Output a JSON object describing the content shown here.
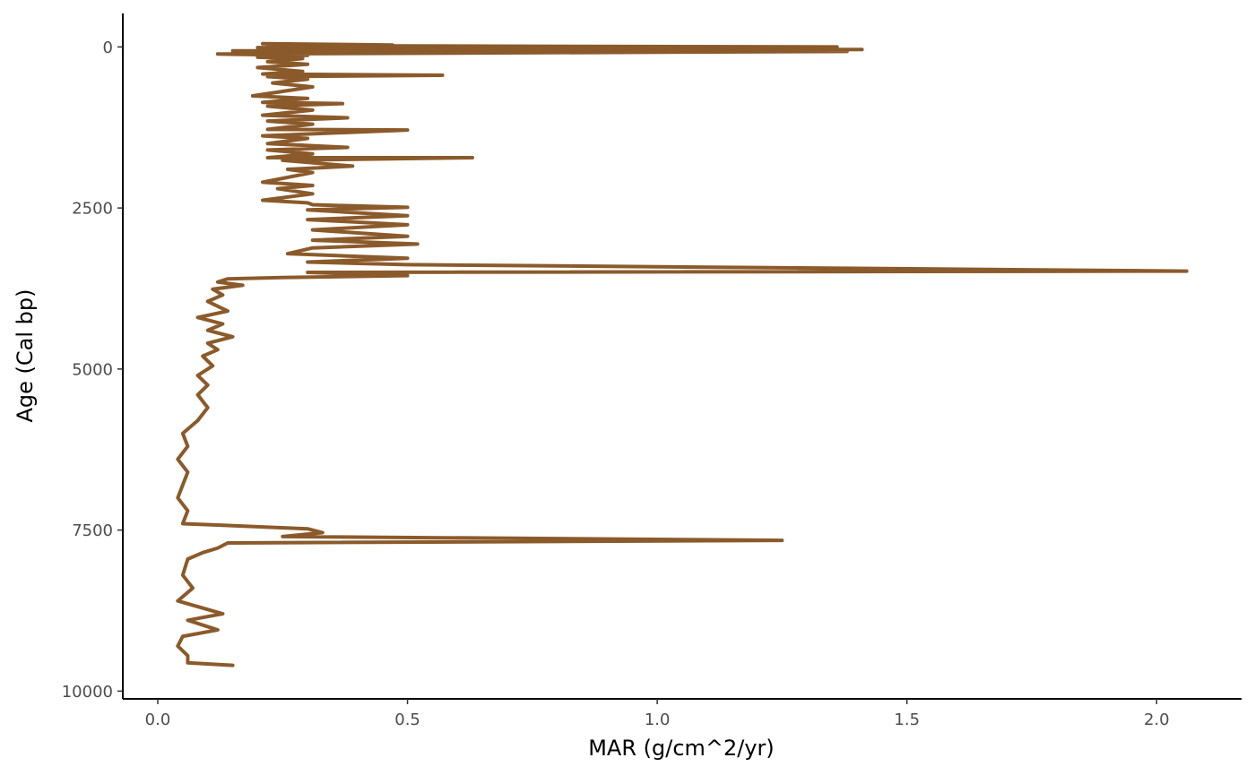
{
  "chart_data": {
    "type": "line",
    "title": "",
    "xlabel": "MAR (g/cm^2/yr)",
    "ylabel": "Age (Cal bp)",
    "xlim": [
      -0.07,
      2.17
    ],
    "ylim": [
      -520,
      10120
    ],
    "y_reversed": true,
    "grid": false,
    "legend": "none",
    "x_ticks": [
      {
        "value": 0.0,
        "label": "0.0"
      },
      {
        "value": 0.5,
        "label": "0.5"
      },
      {
        "value": 1.0,
        "label": "1.0"
      },
      {
        "value": 1.5,
        "label": "1.5"
      },
      {
        "value": 2.0,
        "label": "2.0"
      }
    ],
    "y_ticks": [
      {
        "value": 0,
        "label": "0"
      },
      {
        "value": 2500,
        "label": "2500"
      },
      {
        "value": 5000,
        "label": "5000"
      },
      {
        "value": 7500,
        "label": "7500"
      },
      {
        "value": 10000,
        "label": "10000"
      }
    ],
    "line_color": "#8B5A2B",
    "series": [
      {
        "points": [
          {
            "x": 0.21,
            "y": -50
          },
          {
            "x": 0.47,
            "y": -30
          },
          {
            "x": 0.22,
            "y": -20
          },
          {
            "x": 1.36,
            "y": 0
          },
          {
            "x": 0.2,
            "y": 10
          },
          {
            "x": 1.41,
            "y": 40
          },
          {
            "x": 0.15,
            "y": 60
          },
          {
            "x": 1.38,
            "y": 70
          },
          {
            "x": 0.12,
            "y": 110
          },
          {
            "x": 0.3,
            "y": 130
          },
          {
            "x": 0.2,
            "y": 160
          },
          {
            "x": 0.29,
            "y": 180
          },
          {
            "x": 0.22,
            "y": 230
          },
          {
            "x": 0.3,
            "y": 270
          },
          {
            "x": 0.2,
            "y": 320
          },
          {
            "x": 0.29,
            "y": 380
          },
          {
            "x": 0.21,
            "y": 420
          },
          {
            "x": 0.57,
            "y": 440
          },
          {
            "x": 0.22,
            "y": 460
          },
          {
            "x": 0.3,
            "y": 500
          },
          {
            "x": 0.23,
            "y": 560
          },
          {
            "x": 0.31,
            "y": 620
          },
          {
            "x": 0.19,
            "y": 760
          },
          {
            "x": 0.3,
            "y": 800
          },
          {
            "x": 0.21,
            "y": 860
          },
          {
            "x": 0.37,
            "y": 880
          },
          {
            "x": 0.22,
            "y": 920
          },
          {
            "x": 0.31,
            "y": 980
          },
          {
            "x": 0.21,
            "y": 1060
          },
          {
            "x": 0.38,
            "y": 1100
          },
          {
            "x": 0.22,
            "y": 1150
          },
          {
            "x": 0.31,
            "y": 1200
          },
          {
            "x": 0.22,
            "y": 1280
          },
          {
            "x": 0.5,
            "y": 1290
          },
          {
            "x": 0.21,
            "y": 1380
          },
          {
            "x": 0.3,
            "y": 1420
          },
          {
            "x": 0.22,
            "y": 1500
          },
          {
            "x": 0.38,
            "y": 1560
          },
          {
            "x": 0.22,
            "y": 1600
          },
          {
            "x": 0.31,
            "y": 1660
          },
          {
            "x": 0.22,
            "y": 1720
          },
          {
            "x": 0.63,
            "y": 1720
          },
          {
            "x": 0.25,
            "y": 1760
          },
          {
            "x": 0.39,
            "y": 1850
          },
          {
            "x": 0.26,
            "y": 1900
          },
          {
            "x": 0.31,
            "y": 1950
          },
          {
            "x": 0.21,
            "y": 2100
          },
          {
            "x": 0.31,
            "y": 2150
          },
          {
            "x": 0.24,
            "y": 2200
          },
          {
            "x": 0.31,
            "y": 2280
          },
          {
            "x": 0.21,
            "y": 2380
          },
          {
            "x": 0.3,
            "y": 2420
          },
          {
            "x": 0.31,
            "y": 2450
          },
          {
            "x": 0.5,
            "y": 2490
          },
          {
            "x": 0.3,
            "y": 2530
          },
          {
            "x": 0.5,
            "y": 2620
          },
          {
            "x": 0.3,
            "y": 2680
          },
          {
            "x": 0.5,
            "y": 2760
          },
          {
            "x": 0.31,
            "y": 2840
          },
          {
            "x": 0.5,
            "y": 2940
          },
          {
            "x": 0.31,
            "y": 3000
          },
          {
            "x": 0.52,
            "y": 3060
          },
          {
            "x": 0.31,
            "y": 3120
          },
          {
            "x": 0.26,
            "y": 3210
          },
          {
            "x": 0.5,
            "y": 3280
          },
          {
            "x": 0.3,
            "y": 3340
          },
          {
            "x": 0.5,
            "y": 3380
          },
          {
            "x": 2.06,
            "y": 3480
          },
          {
            "x": 0.3,
            "y": 3500
          },
          {
            "x": 0.5,
            "y": 3550
          },
          {
            "x": 0.25,
            "y": 3580
          },
          {
            "x": 0.14,
            "y": 3600
          },
          {
            "x": 0.12,
            "y": 3650
          },
          {
            "x": 0.17,
            "y": 3700
          },
          {
            "x": 0.11,
            "y": 3760
          },
          {
            "x": 0.13,
            "y": 3850
          },
          {
            "x": 0.1,
            "y": 3950
          },
          {
            "x": 0.14,
            "y": 4100
          },
          {
            "x": 0.08,
            "y": 4200
          },
          {
            "x": 0.13,
            "y": 4300
          },
          {
            "x": 0.1,
            "y": 4400
          },
          {
            "x": 0.15,
            "y": 4500
          },
          {
            "x": 0.1,
            "y": 4600
          },
          {
            "x": 0.12,
            "y": 4700
          },
          {
            "x": 0.09,
            "y": 4800
          },
          {
            "x": 0.11,
            "y": 4950
          },
          {
            "x": 0.08,
            "y": 5100
          },
          {
            "x": 0.1,
            "y": 5250
          },
          {
            "x": 0.08,
            "y": 5400
          },
          {
            "x": 0.1,
            "y": 5600
          },
          {
            "x": 0.08,
            "y": 5800
          },
          {
            "x": 0.05,
            "y": 6000
          },
          {
            "x": 0.06,
            "y": 6200
          },
          {
            "x": 0.04,
            "y": 6400
          },
          {
            "x": 0.06,
            "y": 6600
          },
          {
            "x": 0.05,
            "y": 6800
          },
          {
            "x": 0.04,
            "y": 7000
          },
          {
            "x": 0.06,
            "y": 7200
          },
          {
            "x": 0.05,
            "y": 7400
          },
          {
            "x": 0.3,
            "y": 7480
          },
          {
            "x": 0.33,
            "y": 7540
          },
          {
            "x": 0.25,
            "y": 7600
          },
          {
            "x": 1.25,
            "y": 7660
          },
          {
            "x": 0.14,
            "y": 7700
          },
          {
            "x": 0.12,
            "y": 7780
          },
          {
            "x": 0.09,
            "y": 7850
          },
          {
            "x": 0.06,
            "y": 7950
          },
          {
            "x": 0.05,
            "y": 8200
          },
          {
            "x": 0.07,
            "y": 8400
          },
          {
            "x": 0.04,
            "y": 8600
          },
          {
            "x": 0.13,
            "y": 8800
          },
          {
            "x": 0.06,
            "y": 8900
          },
          {
            "x": 0.12,
            "y": 9050
          },
          {
            "x": 0.05,
            "y": 9150
          },
          {
            "x": 0.04,
            "y": 9300
          },
          {
            "x": 0.06,
            "y": 9450
          },
          {
            "x": 0.06,
            "y": 9560
          },
          {
            "x": 0.15,
            "y": 9600
          }
        ]
      }
    ]
  }
}
